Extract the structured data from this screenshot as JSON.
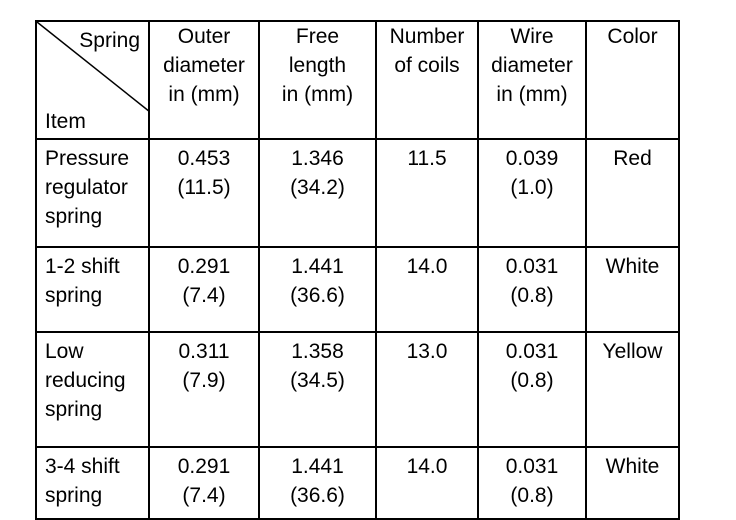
{
  "table": {
    "corner": {
      "top": "Spring",
      "bottom": "Item"
    },
    "columns": [
      "Outer\ndiameter\nin (mm)",
      "Free\nlength\nin (mm)",
      "Number\nof coils",
      "Wire\ndiameter\nin (mm)",
      "Color"
    ],
    "rows": [
      [
        "Pressure\nregulator\nspring",
        "0.453\n(11.5)",
        "1.346\n(34.2)",
        "11.5",
        "0.039\n(1.0)",
        "Red"
      ],
      [
        "1-2 shift\nspring",
        "0.291\n(7.4)",
        "1.441\n(36.6)",
        "14.0",
        "0.031\n(0.8)",
        "White"
      ],
      [
        "Low\nreducing\nspring",
        "0.311\n(7.9)",
        "1.358\n(34.5)",
        "13.0",
        "0.031\n(0.8)",
        "Yellow"
      ],
      [
        "3-4 shift\nspring",
        "0.291\n(7.4)",
        "1.441\n(36.6)",
        "14.0",
        "0.031\n(0.8)",
        "White"
      ]
    ]
  }
}
